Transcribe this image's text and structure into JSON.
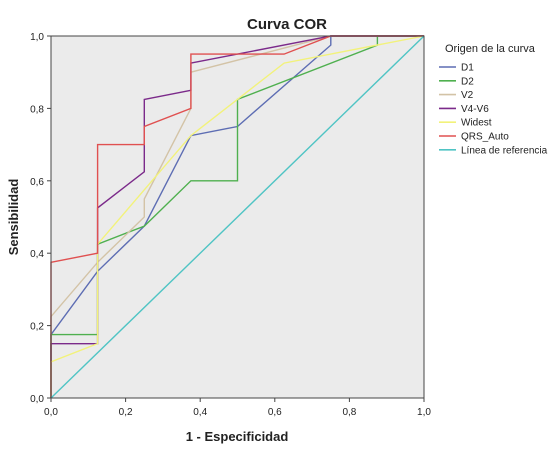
{
  "chart_data": {
    "type": "line",
    "title": "Curva COR",
    "xlabel": "1 - Especificidad",
    "ylabel": "Sensibilidad",
    "xlim": [
      0,
      1
    ],
    "ylim": [
      0,
      1
    ],
    "x_ticks": [
      "0,0",
      "0,2",
      "0,4",
      "0,6",
      "0,8",
      "1,0"
    ],
    "y_ticks": [
      "0,0",
      "0,2",
      "0,4",
      "0,6",
      "0,8",
      "1,0"
    ],
    "grid": false,
    "legend_title": "Origen de la curva",
    "legend_position": "right",
    "series": [
      {
        "name": "D1",
        "color": "#5d6db3",
        "points": [
          [
            0,
            0
          ],
          [
            0,
            0.175
          ],
          [
            0.125,
            0.35
          ],
          [
            0.25,
            0.475
          ],
          [
            0.375,
            0.725
          ],
          [
            0.5,
            0.75
          ],
          [
            0.75,
            0.975
          ],
          [
            0.75,
            1
          ],
          [
            1,
            1
          ]
        ]
      },
      {
        "name": "D2",
        "color": "#4fb04f",
        "points": [
          [
            0,
            0
          ],
          [
            0,
            0.175
          ],
          [
            0.125,
            0.175
          ],
          [
            0.125,
            0.425
          ],
          [
            0.25,
            0.475
          ],
          [
            0.375,
            0.6
          ],
          [
            0.5,
            0.6
          ],
          [
            0.5,
            0.825
          ],
          [
            0.875,
            0.975
          ],
          [
            0.875,
            1
          ],
          [
            1,
            1
          ]
        ]
      },
      {
        "name": "V2",
        "color": "#d3c3a6",
        "points": [
          [
            0,
            0
          ],
          [
            0,
            0.225
          ],
          [
            0.125,
            0.375
          ],
          [
            0.25,
            0.5
          ],
          [
            0.25,
            0.55
          ],
          [
            0.375,
            0.8
          ],
          [
            0.375,
            0.9
          ],
          [
            0.75,
            1
          ],
          [
            1,
            1
          ]
        ]
      },
      {
        "name": "V4-V6",
        "color": "#7b2a8a",
        "points": [
          [
            0,
            0
          ],
          [
            0,
            0.15
          ],
          [
            0.125,
            0.15
          ],
          [
            0.125,
            0.525
          ],
          [
            0.25,
            0.625
          ],
          [
            0.25,
            0.825
          ],
          [
            0.375,
            0.85
          ],
          [
            0.375,
            0.925
          ],
          [
            0.75,
            1
          ],
          [
            1,
            1
          ]
        ]
      },
      {
        "name": "Widest",
        "color": "#f2f27a",
        "points": [
          [
            0,
            0
          ],
          [
            0,
            0.1
          ],
          [
            0.125,
            0.15
          ],
          [
            0.125,
            0.425
          ],
          [
            0.375,
            0.725
          ],
          [
            0.625,
            0.925
          ],
          [
            1,
            1
          ]
        ]
      },
      {
        "name": "QRS_Auto",
        "color": "#e05050",
        "points": [
          [
            0,
            0
          ],
          [
            0,
            0.375
          ],
          [
            0.125,
            0.4
          ],
          [
            0.125,
            0.7
          ],
          [
            0.25,
            0.7
          ],
          [
            0.25,
            0.75
          ],
          [
            0.375,
            0.8
          ],
          [
            0.375,
            0.95
          ],
          [
            0.625,
            0.95
          ],
          [
            0.75,
            1
          ],
          [
            1,
            1
          ]
        ]
      },
      {
        "name": "Línea de referencia",
        "color": "#4fc4c4",
        "points": [
          [
            0,
            0
          ],
          [
            1,
            1
          ]
        ]
      }
    ]
  }
}
